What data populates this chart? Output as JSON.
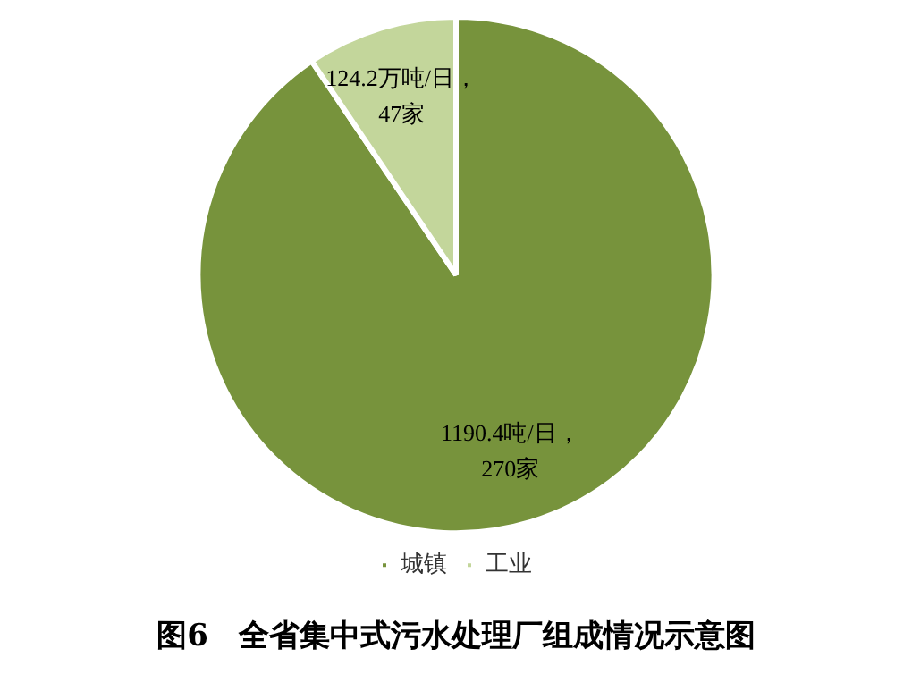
{
  "chart_data": {
    "type": "pie",
    "title": "图6　全省集中式污水处理厂组成情况示意图",
    "categories": [
      "城镇",
      "工业"
    ],
    "values": [
      1190.4,
      124.2
    ],
    "colors": [
      "#77933c",
      "#c3d69b"
    ],
    "value_labels": [
      "1190.4吨/日，\n270家",
      "124.2万吨/日，\n47家"
    ],
    "legend": "bottom"
  }
}
